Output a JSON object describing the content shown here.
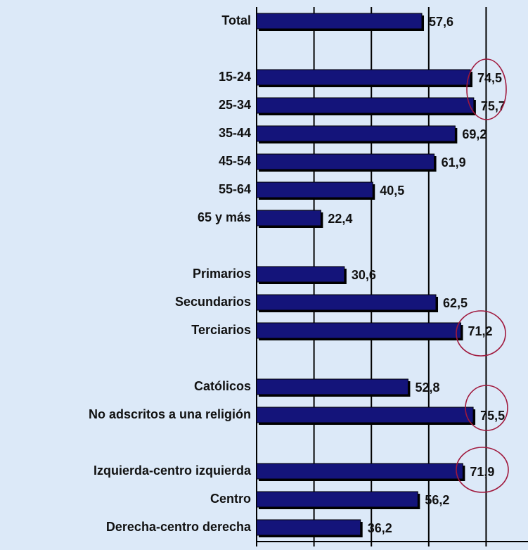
{
  "chart_data": {
    "type": "bar",
    "orientation": "horizontal",
    "categories": [
      "Total",
      null,
      "15-24",
      "25-34",
      "35-44",
      "45-54",
      "55-64",
      "65 y más",
      null,
      "Primarios",
      "Secundarios",
      "Terciarios",
      null,
      "Católicos",
      "No adscritos a una religión",
      null,
      "Izquierda-centro izquierda",
      "Centro",
      "Derecha-centro derecha"
    ],
    "values": [
      57.6,
      null,
      74.5,
      75.7,
      69.2,
      61.9,
      40.5,
      22.4,
      null,
      30.6,
      62.5,
      71.2,
      null,
      52.8,
      75.5,
      null,
      71.9,
      56.2,
      36.2
    ],
    "value_labels": [
      "57,6",
      null,
      "74,5",
      "75,7",
      "69,2",
      "61,9",
      "40,5",
      "22,4",
      null,
      "30,6",
      "62,5",
      "71,2",
      null,
      "52,8",
      "75,5",
      null,
      "71,9",
      "56,2",
      "36,2"
    ],
    "color": "#14147a",
    "xlim": [
      0,
      94.6
    ],
    "xticks": [
      0,
      20,
      40,
      60,
      80
    ],
    "grid": true
  }
}
